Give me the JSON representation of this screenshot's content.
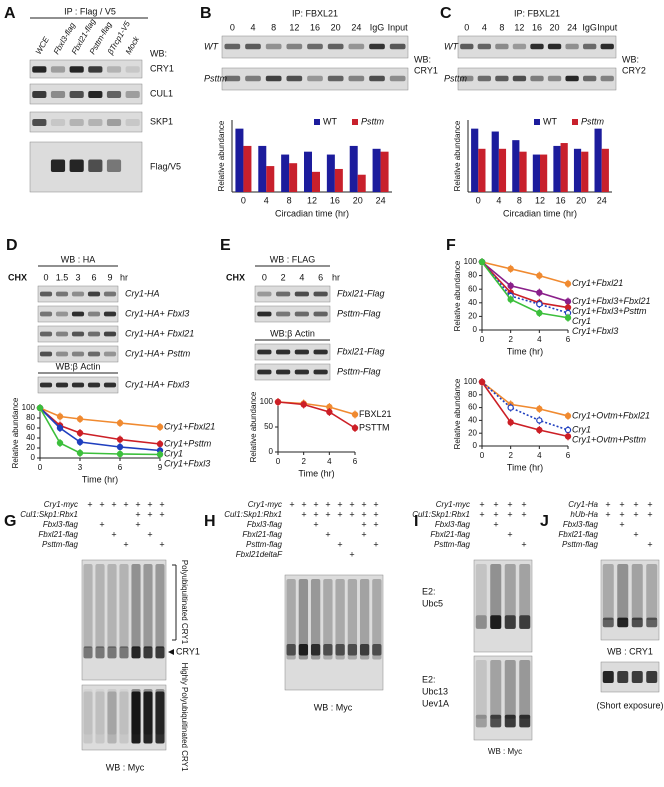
{
  "panels": {
    "A": {
      "letter": "A",
      "header": "IP : Flag / V5",
      "lanes": [
        "WCE",
        "Fbxl3-flag",
        "Fbxl21-flag",
        "Psttm-flag",
        "βTrcp1-V5",
        "Mock"
      ],
      "wb": "WB:",
      "blots": [
        "CRY1",
        "CUL1",
        "SKP1",
        "Flag/V5"
      ]
    },
    "B": {
      "letter": "B",
      "header": "IP: FBXL21",
      "lanes": [
        "0",
        "4",
        "8",
        "12",
        "16",
        "20",
        "24",
        "IgG",
        "Input"
      ],
      "rows": [
        "WT",
        "Psttm"
      ],
      "wb": [
        "WB:",
        "CRY1"
      ]
    },
    "C": {
      "letter": "C",
      "header": "IP: FBXL21",
      "lanes": [
        "0",
        "4",
        "8",
        "12",
        "16",
        "20",
        "24",
        "IgG",
        "Input"
      ],
      "rows": [
        "WT",
        "Psttm"
      ],
      "wb": [
        "WB:",
        "CRY2"
      ]
    },
    "D": {
      "letter": "D",
      "header": "WB : HA",
      "chx": "CHX",
      "lanes": [
        "0",
        "1.5",
        "3",
        "6",
        "9"
      ],
      "unit": "hr",
      "rows": [
        "Cry1-HA",
        "Cry1-HA+ Fbxl3",
        "Cry1-HA+ Fbxl21",
        "Cry1-HA+ Psttm"
      ],
      "header2": "WB:β Actin",
      "rows2": [
        "Cry1-HA+ Fbxl3"
      ]
    },
    "E": {
      "letter": "E",
      "header": "WB : FLAG",
      "chx": "CHX",
      "lanes": [
        "0",
        "2",
        "4",
        "6"
      ],
      "unit": "hr",
      "rows": [
        "Fbxl21-Flag",
        "Psttm-Flag"
      ],
      "header2": "WB:β Actin",
      "rows2": [
        "Fbxl21-Flag",
        "Psttm-Flag"
      ]
    },
    "F": {
      "letter": "F"
    },
    "G": {
      "letter": "G",
      "conditions": [
        "Cry1-myc",
        "Cul1:Skp1:Rbx1",
        "Fbxl3-flag",
        "Fbxl21-flag",
        "Psttm-flag"
      ],
      "signs": [
        [
          "+",
          "+",
          "+",
          "+",
          "+",
          "+",
          "+"
        ],
        [
          null,
          null,
          null,
          null,
          "+",
          "+",
          "+"
        ],
        [
          null,
          "+",
          null,
          null,
          "+",
          null,
          null
        ],
        [
          null,
          null,
          "+",
          null,
          null,
          "+",
          null
        ],
        [
          null,
          null,
          null,
          "+",
          null,
          null,
          "+"
        ]
      ],
      "annotations": [
        "Polyubiquitinated CRY1",
        "CRY1",
        "Highly Polyubiquitinated CRY1"
      ],
      "wb": "WB : Myc"
    },
    "H": {
      "letter": "H",
      "conditions": [
        "Cry1-myc",
        "Cul1:Skp1:Rbx1",
        "Fbxl3-flag",
        "Fbxl21-flag",
        "Psttm-flag",
        "Fbxl21deltaF"
      ],
      "signs": [
        [
          "+",
          "+",
          "+",
          "+",
          "+",
          "+",
          "+",
          "+"
        ],
        [
          null,
          "+",
          "+",
          "+",
          "+",
          "+",
          "+",
          "+"
        ],
        [
          null,
          null,
          "+",
          null,
          null,
          null,
          "+",
          "+"
        ],
        [
          null,
          null,
          null,
          "+",
          null,
          null,
          "+",
          null
        ],
        [
          null,
          null,
          null,
          null,
          "+",
          null,
          null,
          "+"
        ],
        [
          null,
          null,
          null,
          null,
          null,
          "+",
          null,
          null
        ]
      ],
      "wb": "WB : Myc"
    },
    "I": {
      "letter": "I",
      "conditions": [
        "Cry1-myc",
        "Cul1:Skp1:Rbx1",
        "Fbxl3-flag",
        "Fbxl21-flag",
        "Psttm-flag"
      ],
      "signs": [
        [
          "+",
          "+",
          "+",
          "+"
        ],
        [
          "+",
          "+",
          "+",
          "+"
        ],
        [
          null,
          "+",
          null,
          null
        ],
        [
          null,
          null,
          "+",
          null
        ],
        [
          null,
          null,
          null,
          "+"
        ]
      ],
      "e2": [
        [
          "E2:",
          "Ubc5"
        ],
        [
          "E2:",
          "Ubc13",
          "Uev1A"
        ]
      ],
      "wb": "WB : Myc"
    },
    "J": {
      "letter": "J",
      "conditions": [
        "Cry1-Ha",
        "hUb-Ha",
        "Fbxl3-flag",
        "Fbxl21-flag",
        "Psttm-flag"
      ],
      "signs": [
        [
          "+",
          "+",
          "+",
          "+"
        ],
        [
          "+",
          "+",
          "+",
          "+"
        ],
        [
          null,
          "+",
          null,
          null
        ],
        [
          null,
          null,
          "+",
          null
        ],
        [
          null,
          null,
          null,
          "+"
        ]
      ],
      "wb": "WB : CRY1",
      "note": "(Short exposure)"
    }
  },
  "chart_data": [
    {
      "type": "bar",
      "xlabel": "Circadian time (hr)",
      "ylabel": "Relative abundance",
      "categories": [
        "0",
        "4",
        "8",
        "12",
        "16",
        "20",
        "24"
      ],
      "series": [
        {
          "name": "WT",
          "color": "#1c1c9c",
          "values": [
            0.22,
            0.16,
            0.13,
            0.14,
            0.13,
            0.16,
            0.15
          ]
        },
        {
          "name": "Psttm",
          "color": "#c8202c",
          "values": [
            0.16,
            0.09,
            0.1,
            0.07,
            0.08,
            0.06,
            0.14
          ]
        }
      ],
      "ylim": [
        0,
        0.25
      ],
      "legend": "top-right"
    },
    {
      "type": "bar",
      "xlabel": "Circadian time (hr)",
      "ylabel": "Relative abundance",
      "categories": [
        "0",
        "4",
        "8",
        "12",
        "16",
        "20",
        "24"
      ],
      "series": [
        {
          "name": "WT",
          "color": "#1c1c9c",
          "values": [
            0.22,
            0.21,
            0.18,
            0.13,
            0.16,
            0.15,
            0.22
          ]
        },
        {
          "name": "Psttm",
          "color": "#c8202c",
          "values": [
            0.15,
            0.15,
            0.14,
            0.13,
            0.17,
            0.14,
            0.15
          ]
        }
      ],
      "ylim": [
        0,
        0.25
      ],
      "legend": "top-right"
    },
    {
      "type": "line",
      "xlabel": "Time (hr)",
      "ylabel": "Relative abundance",
      "x": [
        0,
        1.5,
        3,
        6,
        9
      ],
      "xlim": [
        0,
        9
      ],
      "xticks": [
        0,
        3,
        6,
        9
      ],
      "ylim": [
        0,
        100
      ],
      "yticks": [
        0,
        20,
        40,
        60,
        80,
        100
      ],
      "series": [
        {
          "name": "Cry1+Fbxl21",
          "color": "#f08a30",
          "values": [
            100,
            83,
            78,
            70,
            62
          ]
        },
        {
          "name": "Cry1+Psttm",
          "color": "#cc1f26",
          "values": [
            100,
            65,
            50,
            37,
            28
          ]
        },
        {
          "name": "Cry1",
          "color": "#1f3fbf",
          "values": [
            100,
            60,
            32,
            22,
            15
          ]
        },
        {
          "name": "Cry1+Fbxl3",
          "color": "#3cbf3c",
          "values": [
            100,
            30,
            10,
            8,
            7
          ]
        }
      ]
    },
    {
      "type": "line",
      "xlabel": "Time (hr)",
      "ylabel": "Relative abundance",
      "x": [
        0,
        2,
        4,
        6
      ],
      "xlim": [
        0,
        6
      ],
      "xticks": [
        0,
        2,
        4,
        6
      ],
      "ylim": [
        0,
        100
      ],
      "yticks": [
        0,
        50,
        100
      ],
      "series": [
        {
          "name": "FBXL21",
          "color": "#f08a30",
          "values": [
            100,
            97,
            90,
            75
          ]
        },
        {
          "name": "PSTTM",
          "color": "#cc1f26",
          "values": [
            100,
            95,
            80,
            48
          ]
        }
      ]
    },
    {
      "type": "line",
      "xlabel": "Time (hr)",
      "ylabel": "Relative abundance",
      "x": [
        0,
        2,
        4,
        6
      ],
      "xlim": [
        0,
        6
      ],
      "xticks": [
        0,
        2,
        4,
        6
      ],
      "ylim": [
        0,
        100
      ],
      "yticks": [
        0,
        20,
        40,
        60,
        80,
        100
      ],
      "series": [
        {
          "name": "Cry1+Fbxl21",
          "color": "#f08a30",
          "values": [
            100,
            90,
            80,
            68
          ]
        },
        {
          "name": "Cry1+Fbxl3+Fbxl21",
          "color": "#8a1f8a",
          "values": [
            100,
            65,
            55,
            42
          ]
        },
        {
          "name": "Cry1+Fbxl3+Psttm",
          "color": "#cc1f26",
          "values": [
            100,
            55,
            40,
            33
          ]
        },
        {
          "name": "Cry1",
          "color": "#1f3fbf",
          "values": [
            100,
            50,
            38,
            25
          ],
          "dashed": true,
          "marker": "open"
        },
        {
          "name": "Cry1+Fbxl3",
          "color": "#3cbf3c",
          "values": [
            100,
            45,
            25,
            18
          ]
        }
      ]
    },
    {
      "type": "line",
      "xlabel": "Time (hr)",
      "ylabel": "Relative abundance",
      "x": [
        0,
        2,
        4,
        6
      ],
      "xlim": [
        0,
        6
      ],
      "xticks": [
        0,
        2,
        4,
        6
      ],
      "ylim": [
        0,
        100
      ],
      "yticks": [
        0,
        20,
        40,
        60,
        80,
        100
      ],
      "series": [
        {
          "name": "Cry1+Ovtm+Fbxl21",
          "color": "#f08a30",
          "values": [
            100,
            65,
            58,
            47
          ]
        },
        {
          "name": "Cry1",
          "color": "#1f3fbf",
          "values": [
            100,
            60,
            40,
            25
          ],
          "dashed": true,
          "marker": "open"
        },
        {
          "name": "Cry1+Ovtm+Psttm",
          "color": "#cc1f26",
          "values": [
            100,
            37,
            25,
            15
          ]
        }
      ]
    }
  ]
}
